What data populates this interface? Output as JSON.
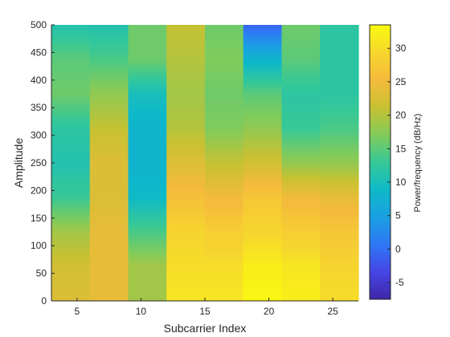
{
  "chart_data": {
    "type": "heatmap",
    "title": "",
    "xlabel": "Subcarrier Index",
    "ylabel": "Amplitude",
    "colorbar_label": "Power/frequency (dB/Hz)",
    "colormap": "parula",
    "xlim": [
      3,
      27
    ],
    "ylim": [
      0,
      500
    ],
    "clim": [
      -7.5,
      33.5
    ],
    "x_ticks": [
      5,
      10,
      15,
      20,
      25
    ],
    "y_ticks": [
      0,
      50,
      100,
      150,
      200,
      250,
      300,
      350,
      400,
      450,
      500
    ],
    "colorbar_ticks": [
      -5,
      0,
      5,
      10,
      15,
      20,
      25,
      30
    ],
    "x_edges": [
      3,
      6,
      9,
      12,
      15,
      18,
      21,
      24,
      27
    ],
    "y_centers": [
      0,
      62.5,
      125,
      187.5,
      250,
      312.5,
      375,
      437.5,
      500
    ],
    "values": [
      [
        23,
        24,
        19,
        31,
        31,
        33,
        32,
        30
      ],
      [
        22,
        24,
        19,
        30,
        30,
        32,
        31,
        29
      ],
      [
        19,
        24,
        14,
        29,
        28,
        29,
        28,
        27
      ],
      [
        13,
        23,
        9,
        26,
        25,
        27,
        25,
        24
      ],
      [
        11,
        23,
        8,
        23,
        21,
        22,
        18,
        18
      ],
      [
        12,
        21,
        8,
        20,
        17,
        18,
        13,
        14
      ],
      [
        16,
        18,
        10,
        19,
        16,
        15,
        12,
        12
      ],
      [
        15,
        14,
        16,
        20,
        17,
        8,
        15,
        12
      ],
      [
        11,
        11,
        16,
        21,
        16,
        -1,
        16,
        12
      ]
    ]
  }
}
